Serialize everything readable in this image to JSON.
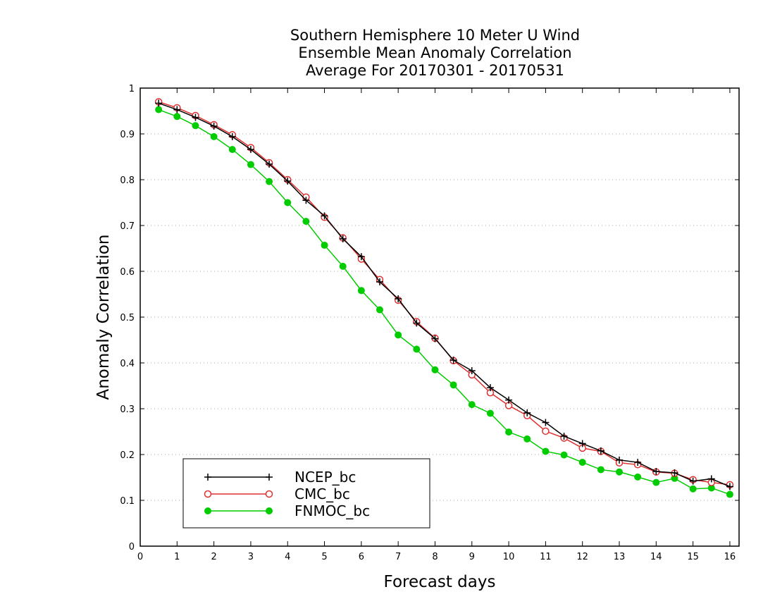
{
  "chart_data": {
    "type": "line",
    "title": [
      "Southern Hemisphere 10 Meter U Wind",
      "Ensemble Mean Anomaly Correlation",
      "Average For 20170301 - 20170531"
    ],
    "xlabel": "Forecast days",
    "ylabel": "Anomaly Correlation",
    "xlim": [
      0,
      16.25
    ],
    "ylim": [
      0,
      1
    ],
    "xticks": [
      "0",
      "1",
      "2",
      "3",
      "4",
      "5",
      "6",
      "7",
      "8",
      "9",
      "10",
      "11",
      "12",
      "13",
      "14",
      "15",
      "16"
    ],
    "yticks": [
      "0",
      "0.1",
      "0.2",
      "0.3",
      "0.4",
      "0.5",
      "0.6",
      "0.7",
      "0.8",
      "0.9",
      "1"
    ],
    "grid": true,
    "legend_position": "bottom-left",
    "x": [
      0.5,
      1,
      1.5,
      2,
      2.5,
      3,
      3.5,
      4,
      4.5,
      5,
      5.5,
      6,
      6.5,
      7,
      7.5,
      8,
      8.5,
      9,
      9.5,
      10,
      10.5,
      11,
      11.5,
      12,
      12.5,
      13,
      13.5,
      14,
      14.5,
      15,
      15.5,
      16
    ],
    "series": [
      {
        "name": "NCEP_bc",
        "color": "#000000",
        "marker": "plus",
        "values": [
          0.967,
          0.953,
          0.936,
          0.917,
          0.894,
          0.866,
          0.834,
          0.797,
          0.755,
          0.721,
          0.671,
          0.632,
          0.577,
          0.54,
          0.487,
          0.453,
          0.406,
          0.383,
          0.346,
          0.319,
          0.291,
          0.27,
          0.24,
          0.224,
          0.208,
          0.188,
          0.183,
          0.163,
          0.16,
          0.142,
          0.147,
          0.13
        ]
      },
      {
        "name": "CMC_bc",
        "color": "#e03030",
        "marker": "open-circle",
        "values": [
          0.97,
          0.957,
          0.94,
          0.92,
          0.898,
          0.87,
          0.837,
          0.8,
          0.762,
          0.718,
          0.673,
          0.627,
          0.582,
          0.537,
          0.49,
          0.454,
          0.405,
          0.374,
          0.335,
          0.307,
          0.285,
          0.251,
          0.236,
          0.214,
          0.207,
          0.182,
          0.178,
          0.162,
          0.159,
          0.145,
          0.139,
          0.134
        ]
      },
      {
        "name": "FNMOC_bc",
        "color": "#00cc00",
        "marker": "filled-circle",
        "values": [
          0.953,
          0.938,
          0.918,
          0.894,
          0.866,
          0.833,
          0.796,
          0.75,
          0.709,
          0.657,
          0.611,
          0.558,
          0.516,
          0.461,
          0.43,
          0.385,
          0.352,
          0.309,
          0.29,
          0.249,
          0.234,
          0.207,
          0.199,
          0.183,
          0.167,
          0.162,
          0.151,
          0.139,
          0.148,
          0.125,
          0.127,
          0.113
        ]
      }
    ]
  }
}
